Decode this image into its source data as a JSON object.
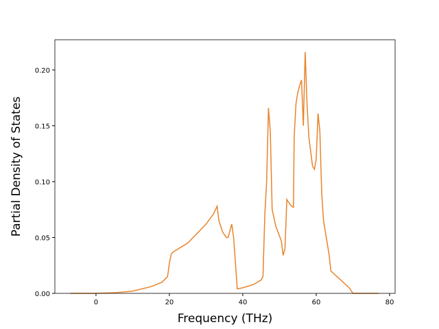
{
  "chart_data": {
    "type": "line",
    "xlabel": "Frequency (THz)",
    "ylabel": "Partial Density of States",
    "xlim": [
      -11.2,
      81.5
    ],
    "ylim": [
      0,
      0.227
    ],
    "xticks": [
      0,
      20,
      40,
      60,
      80
    ],
    "yticks": [
      {
        "value": 0,
        "label": "0.00"
      },
      {
        "value": 0.05,
        "label": "0.05"
      },
      {
        "value": 0.1,
        "label": "0.10"
      },
      {
        "value": 0.15,
        "label": "0.15"
      },
      {
        "value": 0.2,
        "label": "0.20"
      }
    ],
    "x": [
      -7,
      0,
      5,
      10,
      15,
      18,
      19.5,
      20,
      20.5,
      21,
      25,
      30,
      32,
      33,
      33.5,
      34.5,
      35.5,
      36,
      37,
      37.5,
      38.5,
      40,
      43,
      45,
      45.5,
      46,
      46.5,
      47,
      47.5,
      48,
      49,
      50.5,
      51,
      51.5,
      52,
      53,
      53.8,
      54,
      54.5,
      55,
      55.5,
      56,
      56.5,
      57,
      57.5,
      58,
      59,
      59.5,
      60,
      60.5,
      61,
      61.5,
      62,
      63,
      63.5,
      64,
      66,
      69,
      70,
      77
    ],
    "series": [
      {
        "color": "#e8832a",
        "values": [
          0,
          0,
          0.0005,
          0.002,
          0.006,
          0.01,
          0.015,
          0.027,
          0.035,
          0.037,
          0.045,
          0.062,
          0.071,
          0.078,
          0.065,
          0.055,
          0.05,
          0.05,
          0.062,
          0.05,
          0.004,
          0.005,
          0.008,
          0.012,
          0.015,
          0.07,
          0.1,
          0.166,
          0.145,
          0.075,
          0.06,
          0.047,
          0.034,
          0.04,
          0.084,
          0.079,
          0.077,
          0.14,
          0.17,
          0.18,
          0.186,
          0.191,
          0.15,
          0.216,
          0.17,
          0.14,
          0.114,
          0.111,
          0.12,
          0.161,
          0.145,
          0.09,
          0.065,
          0.045,
          0.035,
          0.02,
          0.014,
          0.005,
          0,
          0
        ]
      }
    ]
  }
}
